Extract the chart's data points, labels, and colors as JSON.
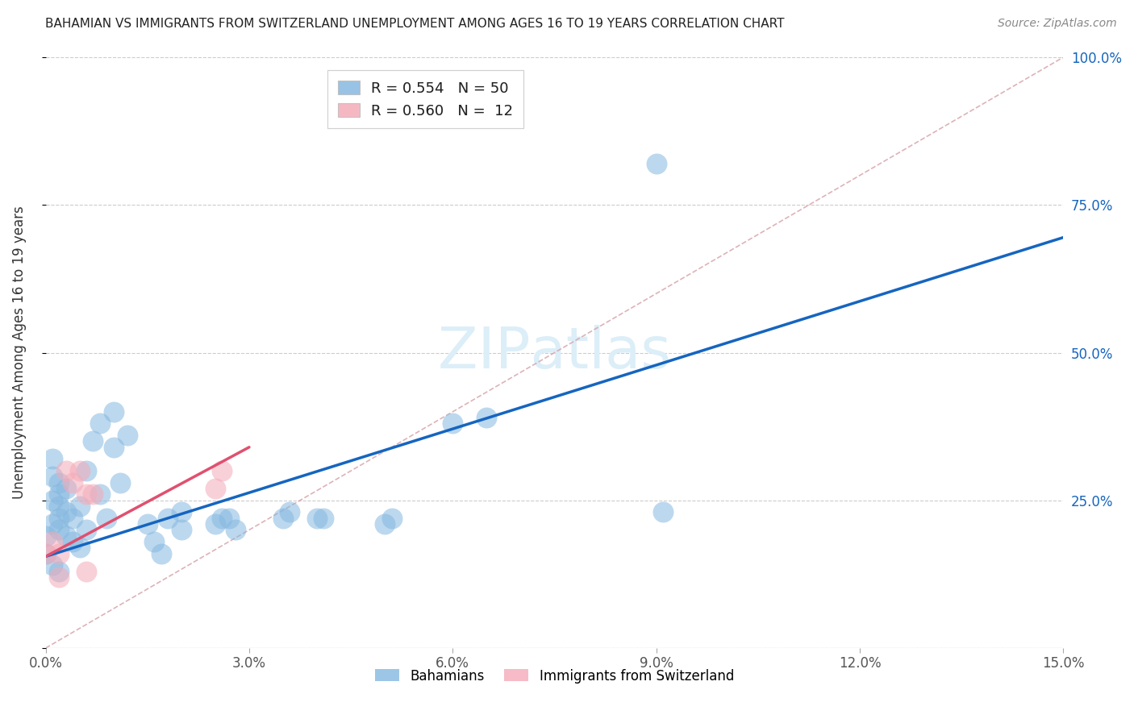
{
  "title": "BAHAMIAN VS IMMIGRANTS FROM SWITZERLAND UNEMPLOYMENT AMONG AGES 16 TO 19 YEARS CORRELATION CHART",
  "source": "Source: ZipAtlas.com",
  "ylabel": "Unemployment Among Ages 16 to 19 years",
  "legend_label1": "Bahamians",
  "legend_label2": "Immigrants from Switzerland",
  "R1": 0.554,
  "N1": 50,
  "R2": 0.56,
  "N2": 12,
  "xlim": [
    0.0,
    0.15
  ],
  "ylim": [
    0.0,
    1.0
  ],
  "xticks": [
    0.0,
    0.03,
    0.06,
    0.09,
    0.12,
    0.15
  ],
  "xtick_labels": [
    "0.0%",
    "3.0%",
    "6.0%",
    "9.0%",
    "12.0%",
    "15.0%"
  ],
  "yticks": [
    0.0,
    0.25,
    0.5,
    0.75,
    1.0
  ],
  "ytick_labels_right": [
    "",
    "25.0%",
    "50.0%",
    "75.0%",
    "100.0%"
  ],
  "color_blue": "#85b8e0",
  "color_pink": "#f4aab8",
  "line_color_blue": "#1565c0",
  "line_color_pink": "#e05070",
  "ref_line_color": "#d0a0a0",
  "watermark_color": "#dceef8",
  "blue_line_x0": 0.0,
  "blue_line_y0": 0.155,
  "blue_line_x1": 0.15,
  "blue_line_y1": 0.695,
  "pink_line_x0": 0.0,
  "pink_line_y0": 0.155,
  "pink_line_x1": 0.03,
  "pink_line_y1": 0.34,
  "bahamians_x": [
    0.001,
    0.001,
    0.001,
    0.001,
    0.002,
    0.002,
    0.002,
    0.002,
    0.002,
    0.003,
    0.003,
    0.003,
    0.004,
    0.004,
    0.005,
    0.005,
    0.006,
    0.006,
    0.007,
    0.008,
    0.008,
    0.009,
    0.01,
    0.01,
    0.011,
    0.012,
    0.015,
    0.016,
    0.017,
    0.018,
    0.02,
    0.02,
    0.025,
    0.026,
    0.027,
    0.028,
    0.035,
    0.036,
    0.04,
    0.041,
    0.05,
    0.051,
    0.06,
    0.065,
    0.09,
    0.091,
    0.0,
    0.0,
    0.001,
    0.002
  ],
  "bahamians_y": [
    0.21,
    0.25,
    0.29,
    0.32,
    0.2,
    0.22,
    0.24,
    0.26,
    0.28,
    0.19,
    0.23,
    0.27,
    0.18,
    0.22,
    0.17,
    0.24,
    0.2,
    0.3,
    0.35,
    0.26,
    0.38,
    0.22,
    0.34,
    0.4,
    0.28,
    0.36,
    0.21,
    0.18,
    0.16,
    0.22,
    0.2,
    0.23,
    0.21,
    0.22,
    0.22,
    0.2,
    0.22,
    0.23,
    0.22,
    0.22,
    0.21,
    0.22,
    0.38,
    0.39,
    0.82,
    0.23,
    0.19,
    0.16,
    0.14,
    0.13
  ],
  "swiss_x": [
    0.0,
    0.001,
    0.002,
    0.002,
    0.003,
    0.004,
    0.005,
    0.006,
    0.006,
    0.007,
    0.025,
    0.026
  ],
  "swiss_y": [
    0.16,
    0.18,
    0.16,
    0.12,
    0.3,
    0.28,
    0.3,
    0.26,
    0.13,
    0.26,
    0.27,
    0.3
  ]
}
